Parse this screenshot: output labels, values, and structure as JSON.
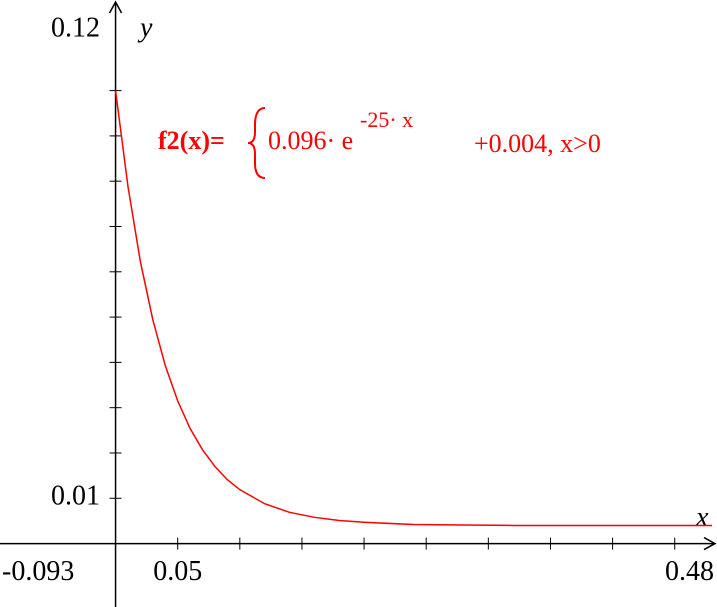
{
  "chart_data": {
    "type": "line",
    "x_label": "x",
    "y_label": "y",
    "xlim": [
      -0.093,
      0.48
    ],
    "ylim": [
      -0.014,
      0.12
    ],
    "xticks": [
      {
        "value": -0.093,
        "label": "-0.093"
      },
      0.05,
      0.48
    ],
    "yticks": [
      0.01,
      0.12
    ],
    "x_minor_ticks": [
      0.1,
      0.15,
      0.2,
      0.25,
      0.3,
      0.35,
      0.4,
      0.45
    ],
    "y_minor_ticks": [
      0.02,
      0.03,
      0.04,
      0.05,
      0.06,
      0.07,
      0.08,
      0.09,
      0.1
    ],
    "annotation": {
      "name": "f2(x)=",
      "base": "0.096· e",
      "exponent": "-25· x",
      "tail": "+0.004, x>0"
    },
    "series": [
      {
        "name": "f2",
        "color": "#ff0000",
        "x": [
          0,
          0.01,
          0.02,
          0.03,
          0.04,
          0.05,
          0.06,
          0.07,
          0.08,
          0.09,
          0.1,
          0.12,
          0.14,
          0.16,
          0.18,
          0.2,
          0.24,
          0.28,
          0.32,
          0.36,
          0.4,
          0.44,
          0.48
        ],
        "values": [
          0.1,
          0.0788,
          0.0622,
          0.0494,
          0.0393,
          0.0315,
          0.0254,
          0.0207,
          0.017,
          0.0141,
          0.0119,
          0.0088,
          0.0069,
          0.0058,
          0.0051,
          0.0047,
          0.0042,
          0.0041,
          0.004,
          0.004,
          0.004,
          0.004,
          0.004
        ]
      }
    ]
  }
}
